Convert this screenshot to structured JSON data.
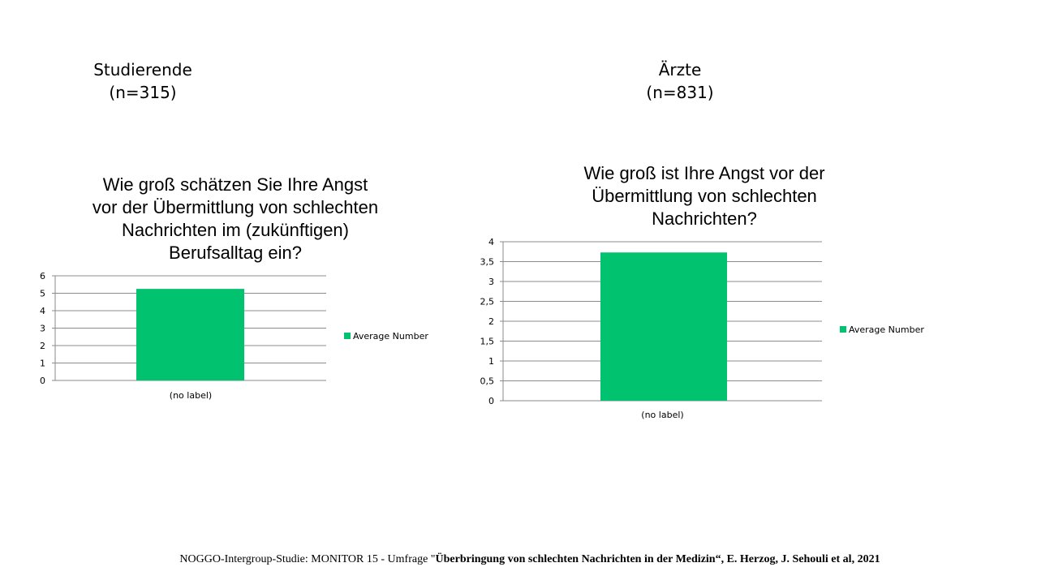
{
  "groups": [
    {
      "name": "Studierende",
      "n": "(n=315)"
    },
    {
      "name": "Ärzte",
      "n": "(n=831)"
    }
  ],
  "chart_data": [
    {
      "type": "bar",
      "title_lines": [
        "Wie groß schätzen Sie Ihre Angst",
        "vor der Übermittlung von schlechten",
        "Nachrichten im (zukünftigen)",
        "Berufsalltag ein?"
      ],
      "categories": [
        "(no label)"
      ],
      "series": [
        {
          "name": "Average Number",
          "values": [
            5.25
          ],
          "color": "#00C26F"
        }
      ],
      "ylim": [
        0,
        6
      ],
      "yticks": [
        "0",
        "1",
        "2",
        "3",
        "4",
        "5",
        "6"
      ],
      "grid": true,
      "legend": "right"
    },
    {
      "type": "bar",
      "title_lines": [
        "Wie groß ist Ihre Angst vor der",
        "Übermittlung von schlechten",
        "Nachrichten?"
      ],
      "categories": [
        "(no label)"
      ],
      "series": [
        {
          "name": "Average Number",
          "values": [
            3.73
          ],
          "color": "#00C26F"
        }
      ],
      "ylim": [
        0,
        4
      ],
      "yticks": [
        "0",
        "0,5",
        "1",
        "1,5",
        "2",
        "2,5",
        "3",
        "3,5",
        "4"
      ],
      "grid": true,
      "legend": "right"
    }
  ],
  "footer": {
    "prefix": "NOGGO-Intergroup-Studie: MONITOR 15 - Umfrage \"",
    "bold": "Überbringung von schlechten Nachrichten in der Medizin“, E. Herzog, J. Sehouli et al, 2021"
  }
}
